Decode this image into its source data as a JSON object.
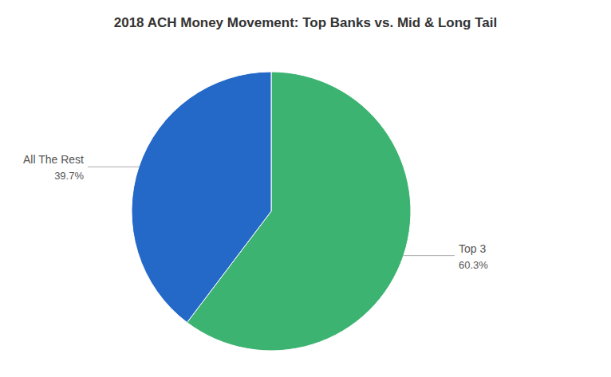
{
  "chart_data": {
    "type": "pie",
    "title": "2018 ACH Money Movement: Top Banks vs. Mid & Long Tail",
    "categories": [
      "Top 3",
      "All The Rest"
    ],
    "values": [
      60.3,
      39.7
    ],
    "colors": [
      "#3cb371",
      "#2468c8"
    ],
    "data_labels": true,
    "value_labels": [
      "60.3%",
      "39.7%"
    ]
  }
}
